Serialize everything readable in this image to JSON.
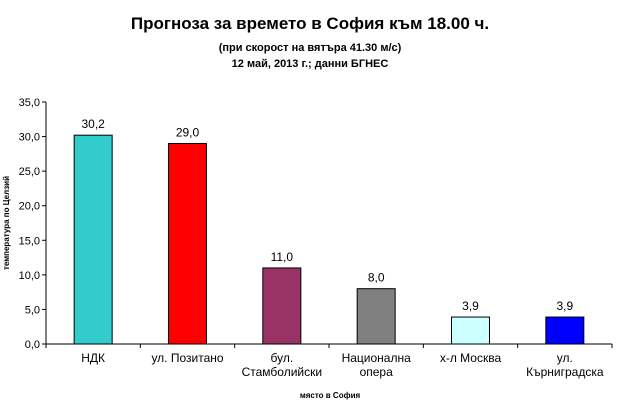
{
  "chart_data": {
    "type": "bar",
    "title": "Прогноза за времето в София към 18.00 ч.",
    "subtitle_line1": "(при скорост на вятъра 41.30 м/с)",
    "subtitle_line2": "12 май, 2013 г.; данни БГНЕС",
    "xlabel": "място в София",
    "ylabel": "температура по Целзий",
    "ylim": [
      0,
      35
    ],
    "ytick_step": 5,
    "ytick_labels": [
      "0,0",
      "5,0",
      "10,0",
      "15,0",
      "20,0",
      "25,0",
      "30,0",
      "35,0"
    ],
    "categories": [
      [
        "НДК"
      ],
      [
        "ул. Позитано"
      ],
      [
        "бул.",
        "Стамболийски"
      ],
      [
        "Национална",
        "опера"
      ],
      [
        "х-л Москва"
      ],
      [
        "ул.",
        "Кърниградска"
      ]
    ],
    "values": [
      30.2,
      29.0,
      11.0,
      8.0,
      3.9,
      3.9
    ],
    "value_labels": [
      "30,2",
      "29,0",
      "11,0",
      "8,0",
      "3,9",
      "3,9"
    ],
    "colors": [
      "#33CCCC",
      "#FF0000",
      "#993366",
      "#808080",
      "#CCFFFF",
      "#0000FF"
    ],
    "grid": false,
    "legend": "none"
  }
}
